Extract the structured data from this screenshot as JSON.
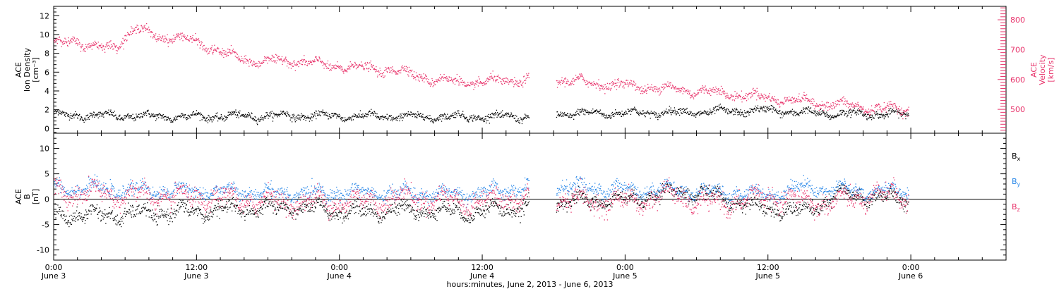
{
  "chart_data": {
    "type": "scatter",
    "xlabel": "hours:minutes, June  2, 2013 - June  6, 2013",
    "x_range_hours": [
      0,
      80
    ],
    "x_ticks": [
      {
        "hour": 0,
        "time": "0:00",
        "date": "June 3"
      },
      {
        "hour": 12,
        "time": "12:00",
        "date": "June 3"
      },
      {
        "hour": 24,
        "time": "0:00",
        "date": "June 4"
      },
      {
        "hour": 36,
        "time": "12:00",
        "date": "June 4"
      },
      {
        "hour": 48,
        "time": "0:00",
        "date": "June 5"
      },
      {
        "hour": 60,
        "time": "12:00",
        "date": "June 5"
      },
      {
        "hour": 72,
        "time": "0:00",
        "date": "June 6"
      }
    ],
    "data_gaps_hours": [
      [
        39.9,
        42.2
      ]
    ],
    "data_end_hour": 71.8,
    "panels": [
      {
        "id": "density-velocity",
        "ylabel_lines": [
          "ACE",
          "Ion Density",
          "[cm⁻³]"
        ],
        "ylim": [
          -0.5,
          13
        ],
        "yticks": [
          0,
          2,
          4,
          6,
          8,
          10,
          12
        ],
        "right_axis": {
          "ylabel_lines": [
            "ACE",
            "Velocity",
            "[km/s]"
          ],
          "ylim": [
            420,
            845
          ],
          "yticks": [
            500,
            600,
            700,
            800
          ],
          "color": "#e8336b"
        },
        "series": [
          {
            "key": "density",
            "axis": "left",
            "color": "#000000",
            "trend": [
              [
                0,
                1.5
              ],
              [
                10,
                1.3
              ],
              [
                20,
                1.4
              ],
              [
                30,
                1.3
              ],
              [
                39.5,
                1.3
              ],
              [
                42.2,
                1.6
              ],
              [
                48,
                1.7
              ],
              [
                55,
                1.8
              ],
              [
                60,
                2.0
              ],
              [
                63,
                1.7
              ],
              [
                66,
                1.6
              ],
              [
                69,
                1.6
              ],
              [
                71.8,
                1.5
              ]
            ],
            "noise": 0.3
          },
          {
            "key": "velocity",
            "axis": "right",
            "color": "#e8336b",
            "trend": [
              [
                0,
                720
              ],
              [
                1.5,
                740
              ],
              [
                3,
                705
              ],
              [
                5,
                715
              ],
              [
                7,
                770
              ],
              [
                9,
                745
              ],
              [
                12,
                730
              ],
              [
                14,
                690
              ],
              [
                17,
                660
              ],
              [
                20,
                665
              ],
              [
                23,
                648
              ],
              [
                26,
                640
              ],
              [
                29,
                630
              ],
              [
                32,
                600
              ],
              [
                35,
                590
              ],
              [
                39.5,
                600
              ],
              [
                42.2,
                600
              ],
              [
                45,
                590
              ],
              [
                50,
                575
              ],
              [
                55,
                560
              ],
              [
                60,
                540
              ],
              [
                65,
                520
              ],
              [
                69,
                505
              ],
              [
                71.8,
                500
              ]
            ],
            "noise": 12
          }
        ]
      },
      {
        "id": "magnetic-field",
        "ylabel_lines": [
          "ACE",
          "B",
          "[nT]"
        ],
        "ylim": [
          -12,
          13
        ],
        "yticks": [
          -10,
          -5,
          0,
          5,
          10
        ],
        "zero_line": true,
        "legend": [
          {
            "label": "B",
            "sub": "x",
            "color": "#000000"
          },
          {
            "label": "B",
            "sub": "y",
            "color": "#2a88e8"
          },
          {
            "label": "B",
            "sub": "z",
            "color": "#e8336b"
          }
        ],
        "series": [
          {
            "key": "bx",
            "color": "#000000",
            "trend": [
              [
                0,
                -3
              ],
              [
                5,
                -3
              ],
              [
                10,
                -2.5
              ],
              [
                15,
                -2
              ],
              [
                20,
                -1.5
              ],
              [
                25,
                -2.5
              ],
              [
                30,
                -2
              ],
              [
                35,
                -2.5
              ],
              [
                39.5,
                -1.5
              ],
              [
                42.2,
                -0.5
              ],
              [
                48,
                0
              ],
              [
                52,
                1.5
              ],
              [
                55,
                1
              ],
              [
                60,
                -1.8
              ],
              [
                63,
                -2.5
              ],
              [
                66,
                1
              ],
              [
                69,
                0.5
              ],
              [
                71.8,
                0
              ]
            ],
            "noise": 1.1
          },
          {
            "key": "by",
            "color": "#2a88e8",
            "trend": [
              [
                0,
                2.5
              ],
              [
                5,
                2
              ],
              [
                10,
                1.8
              ],
              [
                15,
                1.5
              ],
              [
                20,
                1.2
              ],
              [
                25,
                1.5
              ],
              [
                30,
                1.2
              ],
              [
                35,
                1
              ],
              [
                39.5,
                2.5
              ],
              [
                42.2,
                2.5
              ],
              [
                48,
                2
              ],
              [
                52,
                2
              ],
              [
                55,
                1.5
              ],
              [
                60,
                1
              ],
              [
                63,
                2.5
              ],
              [
                66,
                2
              ],
              [
                69,
                1.5
              ],
              [
                71.8,
                2
              ]
            ],
            "noise": 1.0
          },
          {
            "key": "bz",
            "color": "#e8336b",
            "trend": [
              [
                0,
                1.5
              ],
              [
                5,
                1.0
              ],
              [
                10,
                0.5
              ],
              [
                15,
                0
              ],
              [
                20,
                -0.5
              ],
              [
                25,
                -0.5
              ],
              [
                30,
                0.5
              ],
              [
                35,
                -0.5
              ],
              [
                39.5,
                0.5
              ],
              [
                42.2,
                0
              ],
              [
                48,
                -0.5
              ],
              [
                52,
                1
              ],
              [
                55,
                -1
              ],
              [
                60,
                0.5
              ],
              [
                63,
                -0.5
              ],
              [
                66,
                -0.5
              ],
              [
                69,
                1
              ],
              [
                71.8,
                0.5
              ]
            ],
            "noise": 1.5
          }
        ]
      }
    ]
  }
}
